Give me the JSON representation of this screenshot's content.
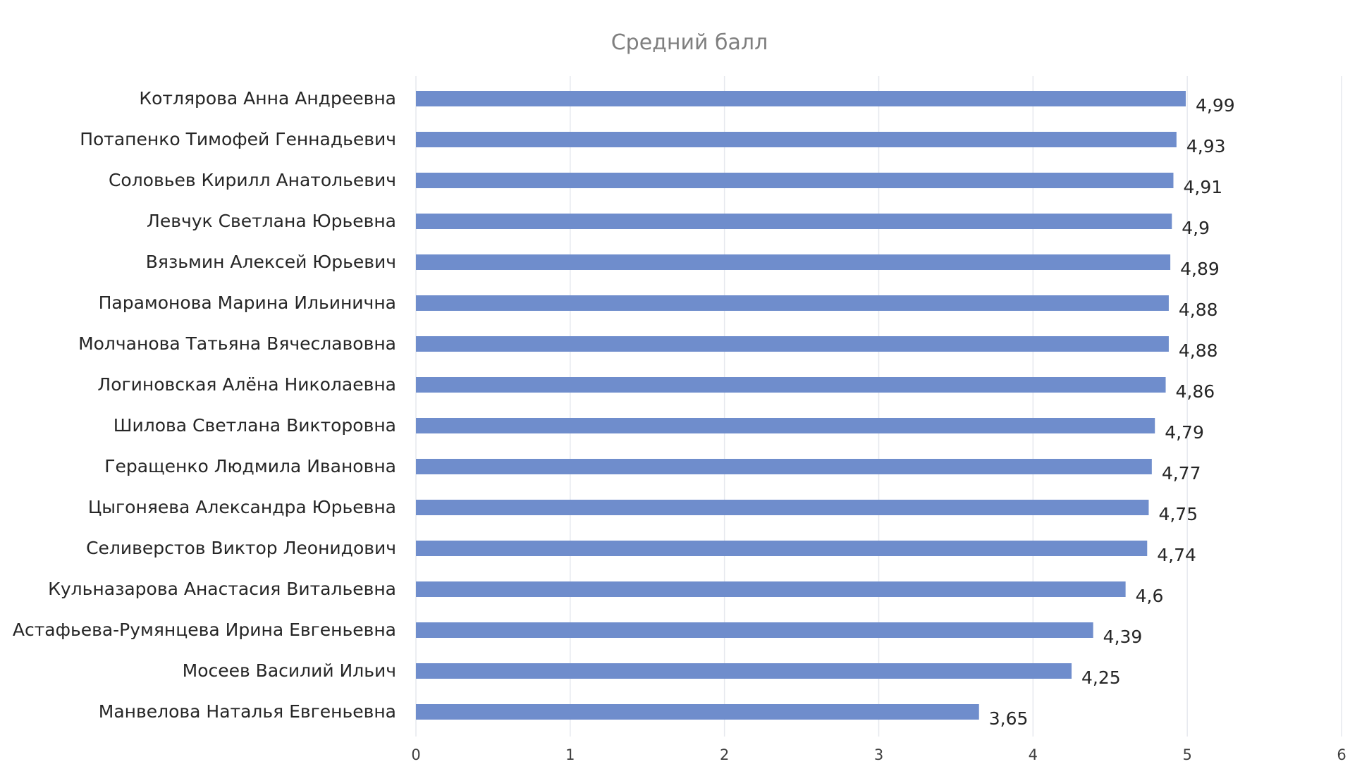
{
  "chart_data": {
    "type": "bar",
    "orientation": "horizontal",
    "title": "Средний балл",
    "categories": [
      "Котлярова Анна Андреевна",
      "Потапенко Тимофей Геннадьевич",
      "Соловьев Кирилл Анатольевич",
      "Левчук Светлана Юрьевна",
      "Вязьмин Алексей Юрьевич",
      "Парамонова Марина Ильинична",
      "Молчанова Татьяна Вячеславовна",
      "Логиновская Алёна Николаевна",
      "Шилова Светлана Викторовна",
      "Геращенко Людмила Ивановна",
      "Цыгоняева Александра Юрьевна",
      "Селиверстов Виктор Леонидович",
      "Кульназарова Анастасия Витальевна",
      "Астафьева-Румянцева Ирина Евгеньевна",
      "Мосеев Василий Ильич",
      "Манвелова Наталья Евгеньевна"
    ],
    "values": [
      4.99,
      4.93,
      4.91,
      4.9,
      4.89,
      4.88,
      4.88,
      4.86,
      4.79,
      4.77,
      4.75,
      4.74,
      4.6,
      4.39,
      4.25,
      3.65
    ],
    "value_labels": [
      "4,99",
      "4,93",
      "4,91",
      "4,9",
      "4,89",
      "4,88",
      "4,88",
      "4,86",
      "4,79",
      "4,77",
      "4,75",
      "4,74",
      "4,6",
      "4,39",
      "4,25",
      "3,65"
    ],
    "x_ticks": [
      "0",
      "1",
      "2",
      "3",
      "4",
      "5",
      "6"
    ],
    "xlim": [
      0,
      6
    ],
    "xlabel": "",
    "ylabel": "",
    "grid": true,
    "legend": "none",
    "bar_color": "#6f8dcc"
  }
}
